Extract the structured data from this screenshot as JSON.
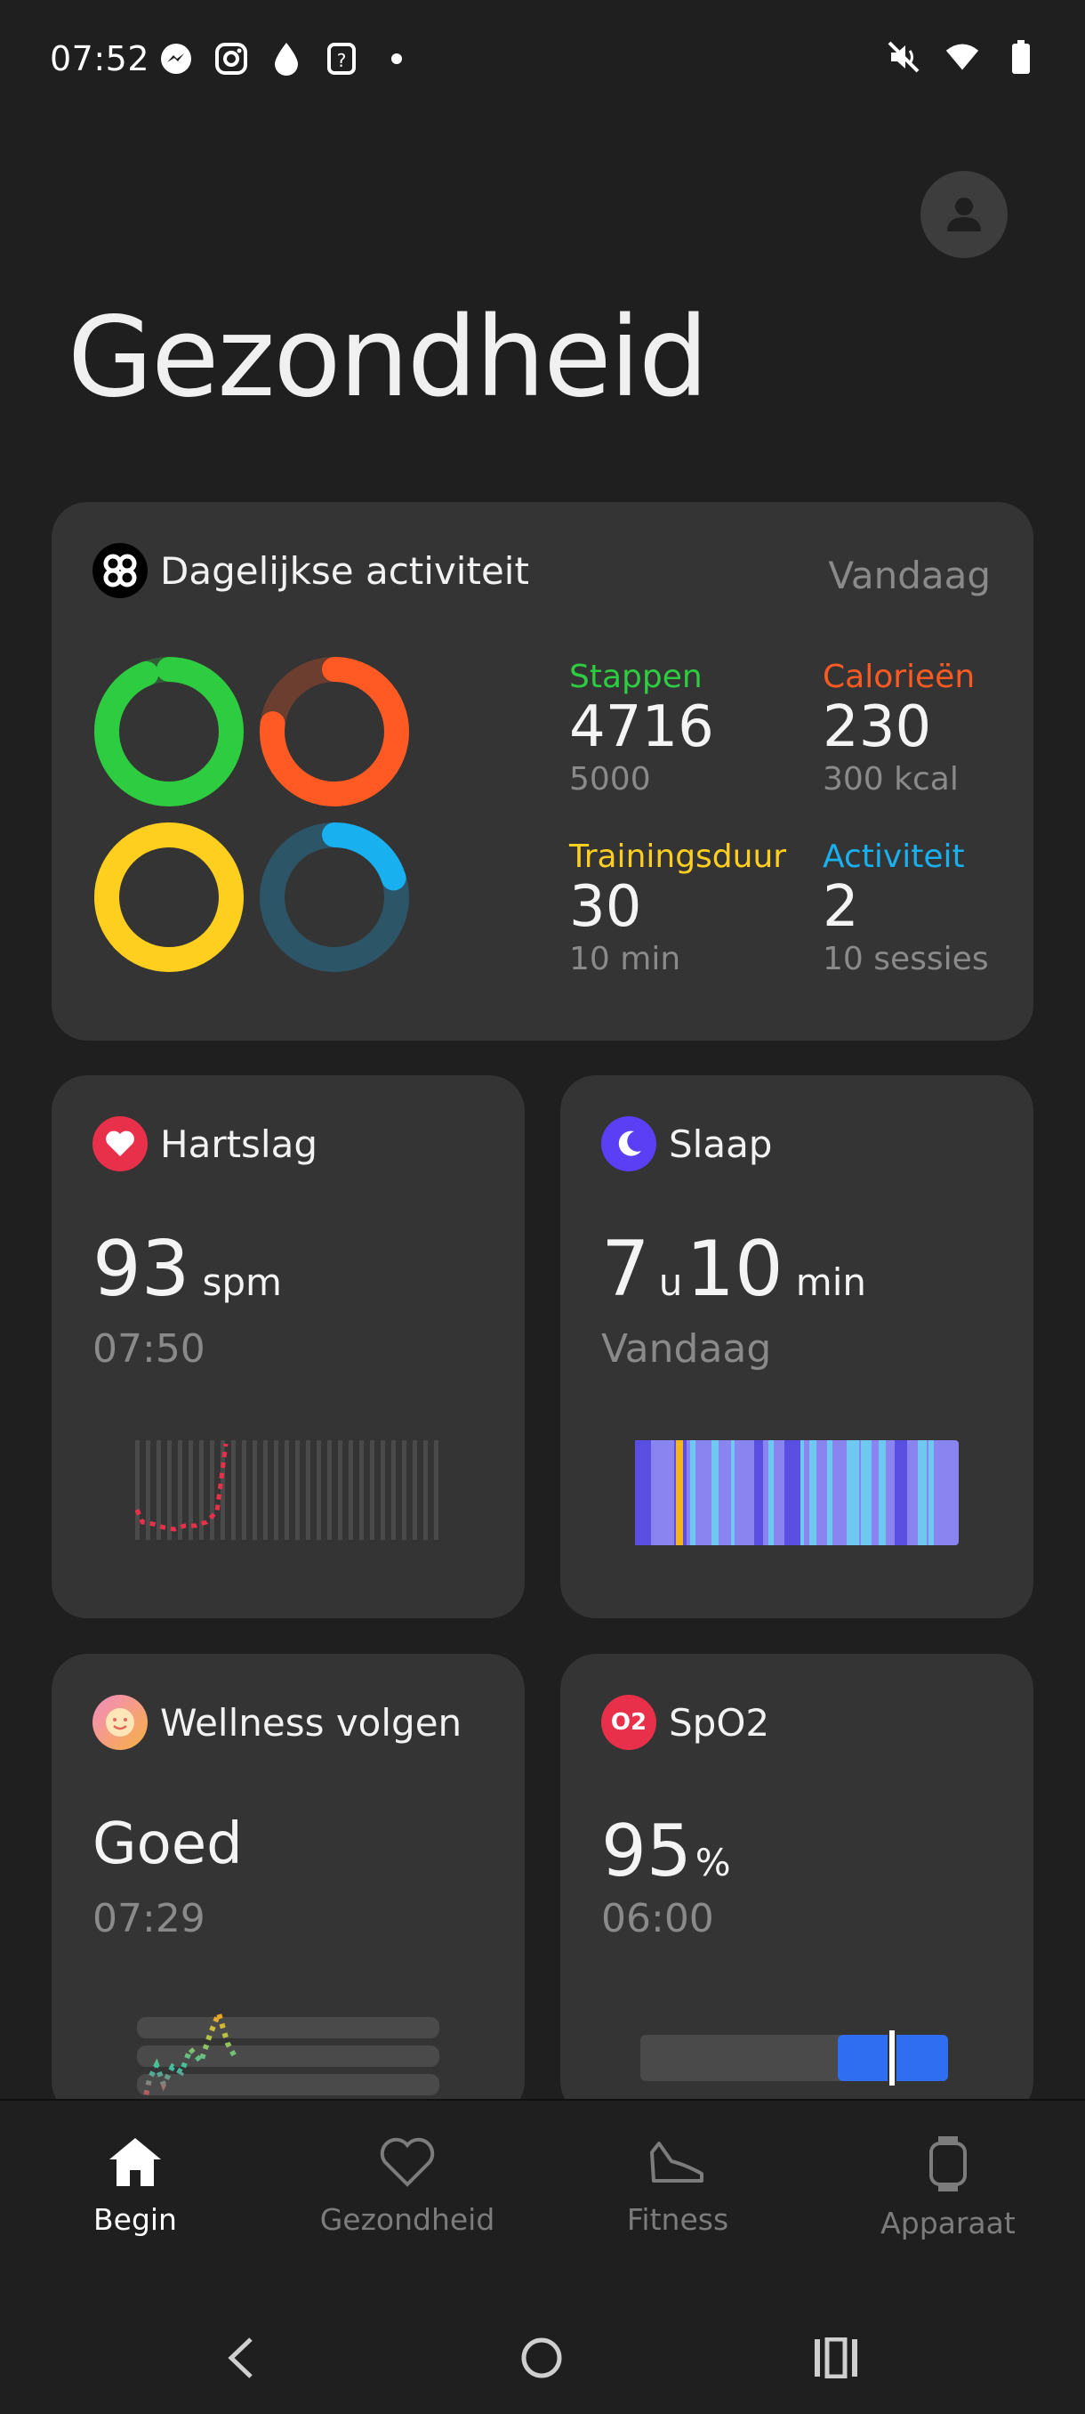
{
  "status_bar": {
    "time": "07:52",
    "left_icons": [
      "messenger-icon",
      "instagram-icon",
      "drop-icon",
      "question-icon",
      "dot-icon"
    ],
    "right_icons": [
      "mute-icon",
      "wifi-icon",
      "battery-icon"
    ]
  },
  "header": {
    "title": "Gezondheid"
  },
  "activity": {
    "title": "Dagelijkse activiteit",
    "period": "Vandaag",
    "stats": [
      {
        "label": "Stappen",
        "value": "4716",
        "goal": "5000",
        "color": "#2ecc40",
        "progress": 0.94
      },
      {
        "label": "Calorieën",
        "value": "230",
        "goal": "300 kcal",
        "color": "#ff5a23",
        "progress": 0.77
      },
      {
        "label": "Trainingsduur",
        "value": "30",
        "goal": "10 min",
        "color": "#ffcf1f",
        "progress": 1.0
      },
      {
        "label": "Activiteit",
        "value": "2",
        "goal": "10 sessies",
        "color": "#19b0f0",
        "progress": 0.2
      }
    ]
  },
  "heart": {
    "title": "Hartslag",
    "value": "93",
    "unit": "spm",
    "time": "07:50",
    "color": "#e8304a"
  },
  "sleep": {
    "title": "Slaap",
    "hours": "7",
    "hours_unit": "u",
    "minutes": "10",
    "minutes_unit": "min",
    "period": "Vandaag",
    "color": "#5b3ff5"
  },
  "wellness": {
    "title": "Wellness volgen",
    "status": "Goed",
    "time": "07:29"
  },
  "spo2": {
    "title": "SpO2",
    "icon_text": "O2",
    "value": "95",
    "unit": "%",
    "time": "06:00",
    "color": "#e8304a",
    "gauge_level": 0.95
  },
  "nav": {
    "items": [
      {
        "label": "Begin",
        "icon": "home-icon"
      },
      {
        "label": "Gezondheid",
        "icon": "heart-outline-icon"
      },
      {
        "label": "Fitness",
        "icon": "shoe-icon"
      },
      {
        "label": "Apparaat",
        "icon": "watch-icon"
      }
    ]
  },
  "system_nav": [
    "back-icon",
    "home-circle-icon",
    "recents-icon"
  ]
}
